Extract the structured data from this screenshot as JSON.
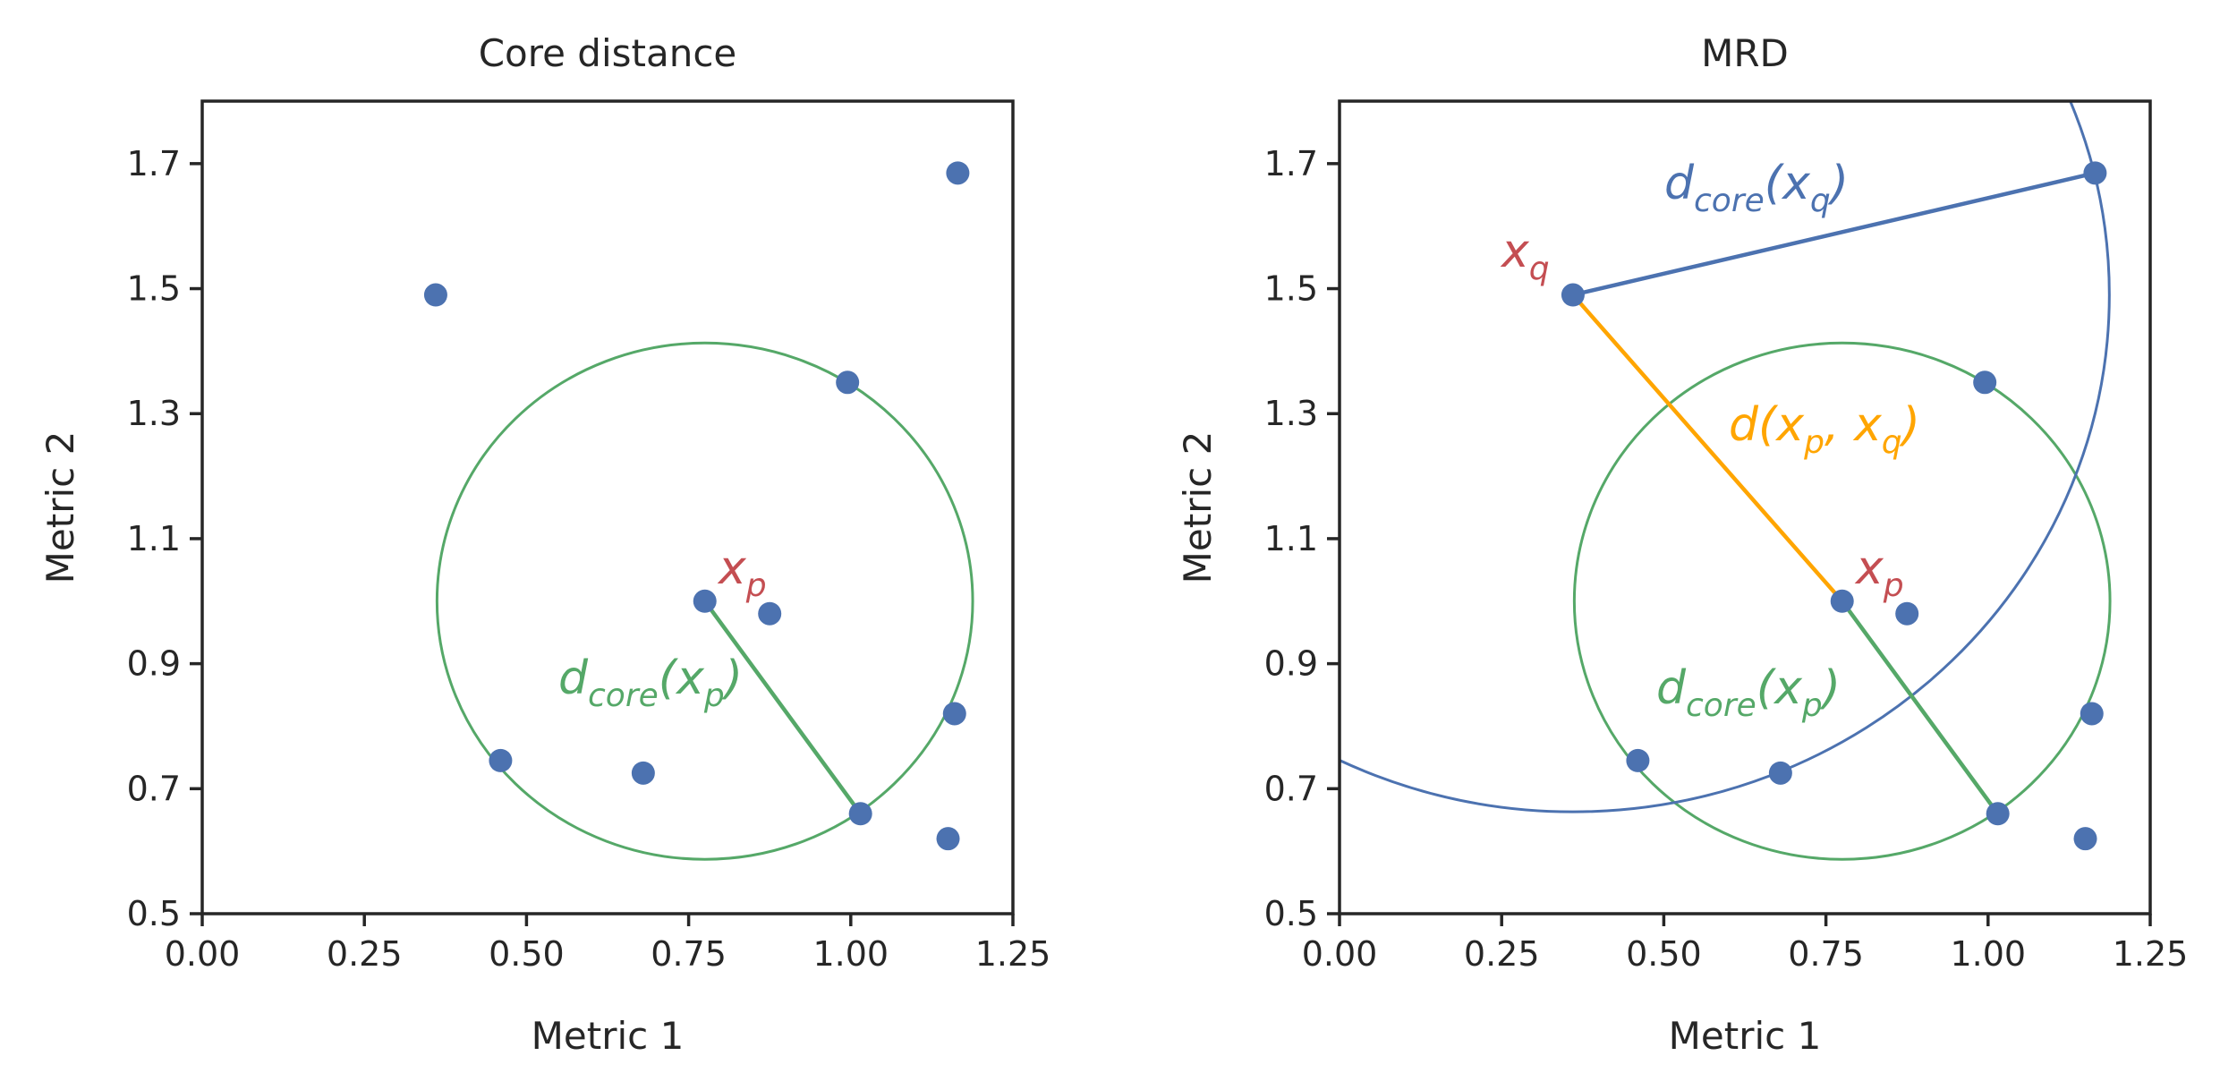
{
  "colors": {
    "points": "#4c72b0",
    "green": "#55a868",
    "blue": "#4c72b0",
    "orange": "#ffa500",
    "red": "#c44e52"
  },
  "annotations": {
    "xp": {
      "base": "x",
      "sub": "p"
    },
    "xq": {
      "base": "x",
      "sub": "q"
    },
    "dcore_p": {
      "base": "d",
      "sub": "core",
      "open": "(x",
      "arg_sub": "p",
      "close": ")"
    },
    "dcore_q": {
      "base": "d",
      "sub": "core",
      "open": "(x",
      "arg_sub": "q",
      "close": ")"
    },
    "dpq": {
      "open": "d(x",
      "sub1": "p",
      "mid": ", x",
      "sub2": "q",
      "close": ")"
    }
  },
  "chart_data": [
    {
      "type": "scatter",
      "title": "Core distance",
      "xlabel": "Metric 1",
      "ylabel": "Metric 2",
      "xlim": [
        0.0,
        1.25
      ],
      "ylim": [
        0.5,
        1.8
      ],
      "xticks": [
        "0.00",
        "0.25",
        "0.50",
        "0.75",
        "1.00",
        "1.25"
      ],
      "yticks": [
        "0.5",
        "0.7",
        "0.9",
        "1.1",
        "1.3",
        "1.5",
        "1.7"
      ],
      "points": [
        {
          "x": 0.36,
          "y": 1.49
        },
        {
          "x": 0.46,
          "y": 0.745
        },
        {
          "x": 0.68,
          "y": 0.725
        },
        {
          "x": 0.775,
          "y": 1.0
        },
        {
          "x": 0.875,
          "y": 0.98
        },
        {
          "x": 0.995,
          "y": 1.35
        },
        {
          "x": 1.015,
          "y": 0.66
        },
        {
          "x": 1.15,
          "y": 0.62
        },
        {
          "x": 1.16,
          "y": 0.82
        },
        {
          "x": 1.165,
          "y": 1.685
        }
      ],
      "circles": [
        {
          "cx": 0.775,
          "cy": 1.0,
          "r": 0.413,
          "color": "green"
        }
      ],
      "segments": [
        {
          "from": [
            0.775,
            1.0
          ],
          "to": [
            1.015,
            0.66
          ],
          "color": "green"
        }
      ]
    },
    {
      "type": "scatter",
      "title": "MRD",
      "xlabel": "Metric 1",
      "ylabel": "Metric 2",
      "xlim": [
        0.0,
        1.25
      ],
      "ylim": [
        0.5,
        1.8
      ],
      "xticks": [
        "0.00",
        "0.25",
        "0.50",
        "0.75",
        "1.00",
        "1.25"
      ],
      "yticks": [
        "0.5",
        "0.7",
        "0.9",
        "1.1",
        "1.3",
        "1.5",
        "1.7"
      ],
      "points": [
        {
          "x": 0.36,
          "y": 1.49
        },
        {
          "x": 0.46,
          "y": 0.745
        },
        {
          "x": 0.68,
          "y": 0.725
        },
        {
          "x": 0.775,
          "y": 1.0
        },
        {
          "x": 0.875,
          "y": 0.98
        },
        {
          "x": 0.995,
          "y": 1.35
        },
        {
          "x": 1.015,
          "y": 0.66
        },
        {
          "x": 1.15,
          "y": 0.62
        },
        {
          "x": 1.16,
          "y": 0.82
        },
        {
          "x": 1.165,
          "y": 1.685
        }
      ],
      "circles": [
        {
          "cx": 0.775,
          "cy": 1.0,
          "r": 0.413,
          "color": "green"
        },
        {
          "cx": 0.36,
          "cy": 1.49,
          "r": 0.827,
          "color": "blue"
        }
      ],
      "segments": [
        {
          "from": [
            0.775,
            1.0
          ],
          "to": [
            1.015,
            0.66
          ],
          "color": "green"
        },
        {
          "from": [
            0.36,
            1.49
          ],
          "to": [
            1.165,
            1.685
          ],
          "color": "blue"
        },
        {
          "from": [
            0.36,
            1.49
          ],
          "to": [
            0.775,
            1.0
          ],
          "color": "orange"
        }
      ]
    }
  ]
}
